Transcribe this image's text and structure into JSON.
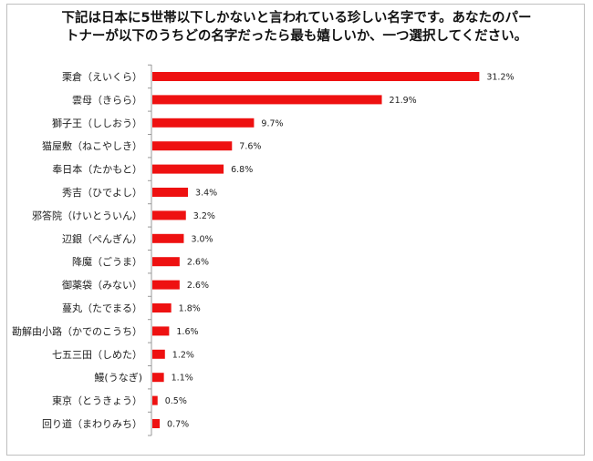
{
  "chart_data": {
    "type": "bar",
    "orientation": "horizontal",
    "title_lines": [
      "下記は日本に5世帯以下しかないと言われている珍しい名字です。あなたのパー",
      "トナーが以下のうちどの名字だったら最も嬉しいか、一つ選択してください。"
    ],
    "categories": [
      "栗倉（えいくら）",
      "雲母（きらら）",
      "獅子王（ししおう）",
      "猫屋敷（ねこやしき）",
      "奉日本（たかもと）",
      "秀吉（ひでよし）",
      "邪答院（けいとういん）",
      "辺銀（ぺんぎん）",
      "降魔（ごうま）",
      "御薬袋（みない）",
      "蔓丸（たでまる）",
      "勘解由小路（かでのこうち）",
      "七五三田（しめた）",
      "鰻(うなぎ)",
      "東京（とうきょう）",
      "回り道（まわりみち）"
    ],
    "values": [
      31.2,
      21.9,
      9.7,
      7.6,
      6.8,
      3.4,
      3.2,
      3.0,
      2.6,
      2.6,
      1.8,
      1.6,
      1.2,
      1.1,
      0.5,
      0.7
    ],
    "value_labels": [
      "31.2%",
      "21.9%",
      "9.7%",
      "7.6%",
      "6.8%",
      "3.4%",
      "3.2%",
      "3.0%",
      "2.6%",
      "2.6%",
      "1.8%",
      "1.6%",
      "1.2%",
      "1.1%",
      "0.5%",
      "0.7%"
    ],
    "unit": "%",
    "xlim": [
      0,
      35
    ],
    "bar_color": "#ee1111",
    "axis_color": "#999999",
    "grid": false,
    "legend": "none"
  }
}
